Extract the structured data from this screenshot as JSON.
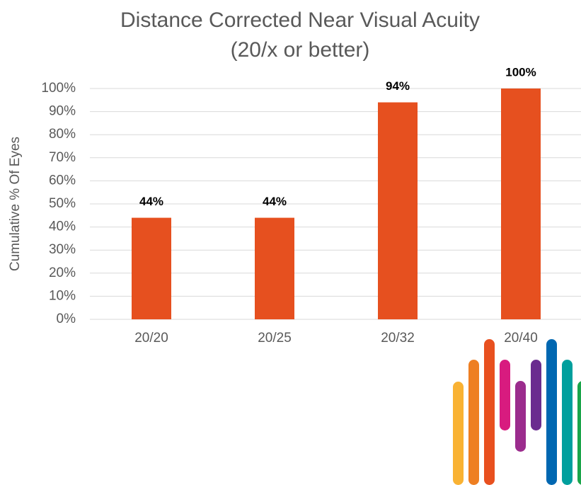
{
  "chart_data": {
    "type": "bar",
    "title": "Distance Corrected Near Visual Acuity",
    "subtitle": "(20/x or better)",
    "y_axis_label": "Cumulative % Of Eyes",
    "categories": [
      "20/20",
      "20/25",
      "20/32",
      "20/40"
    ],
    "values": [
      44,
      44,
      94,
      100
    ],
    "value_labels": [
      "44%",
      "44%",
      "94%",
      "100%"
    ],
    "color": "#e6501f",
    "ylim": [
      0,
      100
    ],
    "yticks": [
      {
        "value": 0,
        "label": "0%"
      },
      {
        "value": 10,
        "label": "10%"
      },
      {
        "value": 20,
        "label": "20%"
      },
      {
        "value": 30,
        "label": "30%"
      },
      {
        "value": 40,
        "label": "40%"
      },
      {
        "value": 50,
        "label": "50%"
      },
      {
        "value": 60,
        "label": "60%"
      },
      {
        "value": 70,
        "label": "70%"
      },
      {
        "value": 80,
        "label": "80%"
      },
      {
        "value": 90,
        "label": "90%"
      },
      {
        "value": 100,
        "label": "100%"
      }
    ],
    "grid": true
  }
}
